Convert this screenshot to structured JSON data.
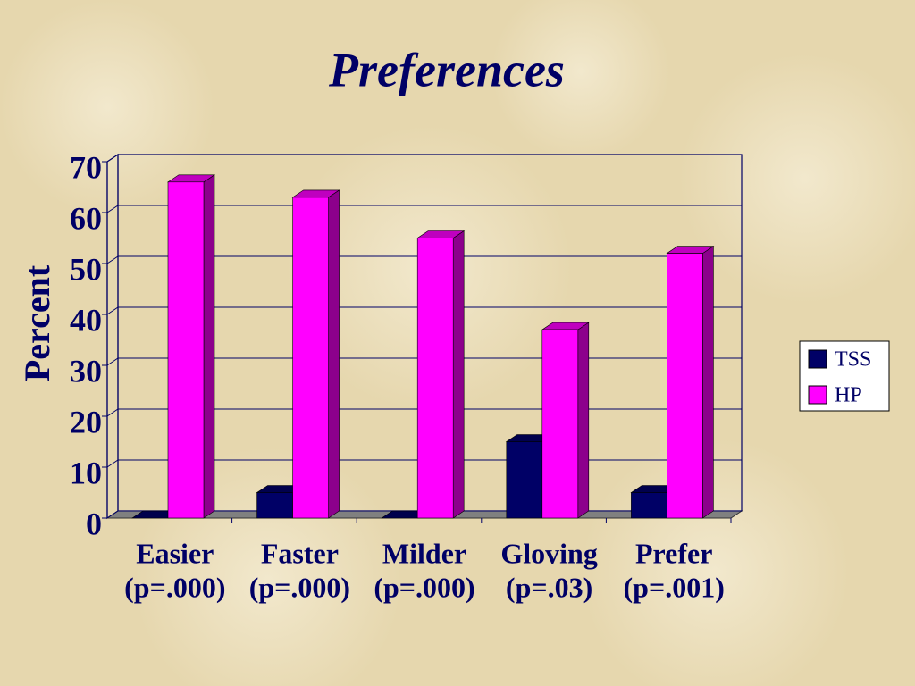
{
  "chart_data": {
    "type": "bar3d",
    "title": "Preferences",
    "y_label": "Percent",
    "categories": [
      [
        "Easier",
        "(p=.000)"
      ],
      [
        "Faster",
        "(p=.000)"
      ],
      [
        "Milder",
        "(p=.000)"
      ],
      [
        "Gloving",
        "(p=.03)"
      ],
      [
        "Prefer",
        "(p=.001)"
      ]
    ],
    "series": [
      {
        "name": "TSS",
        "color": "#000066",
        "values": [
          0,
          5,
          0,
          15,
          5
        ]
      },
      {
        "name": "HP",
        "color": "#ff00ff",
        "values": [
          66,
          63,
          55,
          37,
          52
        ]
      }
    ],
    "ylim": [
      0,
      70
    ],
    "yticks": [
      0,
      10,
      20,
      30,
      40,
      50,
      60,
      70
    ],
    "grid": true,
    "legend": "right"
  }
}
